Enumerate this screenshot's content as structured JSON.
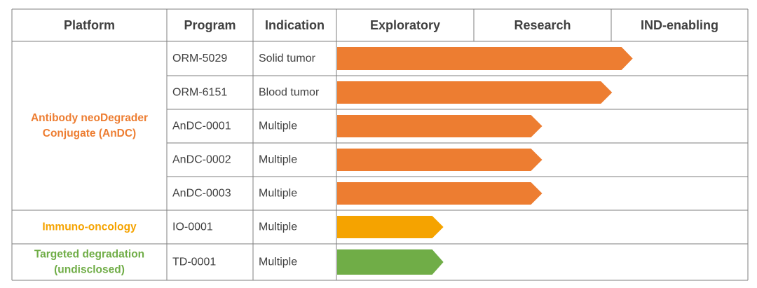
{
  "chart_data": {
    "type": "table",
    "columns": [
      "Platform",
      "Program",
      "Indication",
      "Exploratory",
      "Research",
      "IND-enabling"
    ],
    "platforms": [
      {
        "lines": [
          "Antibody neoDegrader",
          "Conjugate (AnDC)"
        ],
        "color": "#ED7D31",
        "programs": [
          {
            "program": "ORM-5029",
            "indication": "Solid tumor",
            "progress": 0.72
          },
          {
            "program": "ORM-6151",
            "indication": "Blood tumor",
            "progress": 0.67
          },
          {
            "program": "AnDC-0001",
            "indication": "Multiple",
            "progress": 0.5
          },
          {
            "program": "AnDC-0002",
            "indication": "Multiple",
            "progress": 0.5
          },
          {
            "program": "AnDC-0003",
            "indication": "Multiple",
            "progress": 0.5
          }
        ]
      },
      {
        "lines": [
          "Immuno-oncology"
        ],
        "color": "#F5A300",
        "programs": [
          {
            "program": "IO-0001",
            "indication": "Multiple",
            "progress": 0.26
          }
        ]
      },
      {
        "lines": [
          "Targeted degradation",
          "(undisclosed)"
        ],
        "color": "#70AD47",
        "programs": [
          {
            "program": "TD-0001",
            "indication": "Multiple",
            "progress": 0.26
          }
        ]
      }
    ]
  }
}
